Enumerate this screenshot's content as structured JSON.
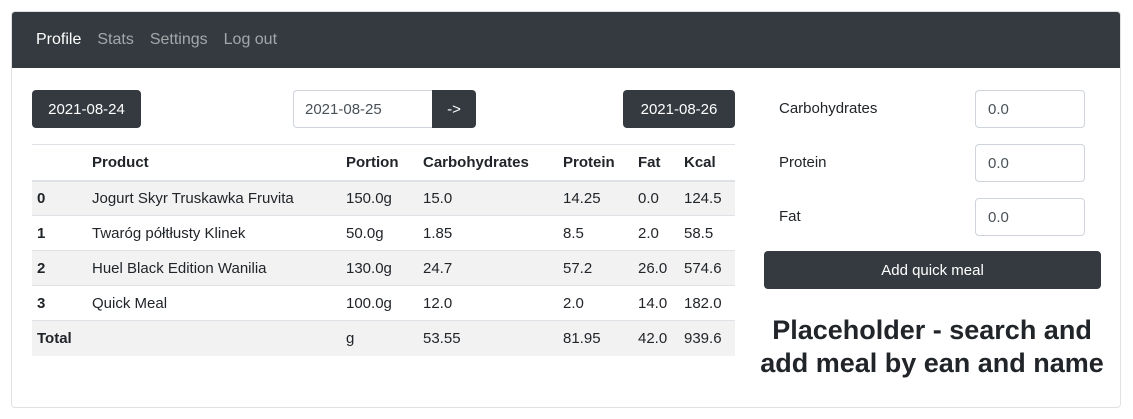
{
  "nav": {
    "items": [
      {
        "label": "Profile",
        "active": true
      },
      {
        "label": "Stats",
        "active": false
      },
      {
        "label": "Settings",
        "active": false
      },
      {
        "label": "Log out",
        "active": false
      }
    ]
  },
  "date_nav": {
    "prev_label": "2021-08-24",
    "current_value": "2021-08-25",
    "go_label": "->",
    "next_label": "2021-08-26"
  },
  "table": {
    "headers": [
      "",
      "Product",
      "Portion",
      "Carbohydrates",
      "Protein",
      "Fat",
      "Kcal"
    ],
    "rows": [
      {
        "index": "0",
        "product": "Jogurt Skyr Truskawka Fruvita",
        "portion": "150.0g",
        "carbs": "15.0",
        "protein": "14.25",
        "fat": "0.0",
        "kcal": "124.5"
      },
      {
        "index": "1",
        "product": "Twaróg półtłusty Klinek",
        "portion": "50.0g",
        "carbs": "1.85",
        "protein": "8.5",
        "fat": "2.0",
        "kcal": "58.5"
      },
      {
        "index": "2",
        "product": "Huel Black Edition Wanilia",
        "portion": "130.0g",
        "carbs": "24.7",
        "protein": "57.2",
        "fat": "26.0",
        "kcal": "574.6"
      },
      {
        "index": "3",
        "product": "Quick Meal",
        "portion": "100.0g",
        "carbs": "12.0",
        "protein": "2.0",
        "fat": "14.0",
        "kcal": "182.0"
      }
    ],
    "total": {
      "label": "Total",
      "product": "",
      "portion": "g",
      "carbs": "53.55",
      "protein": "81.95",
      "fat": "42.0",
      "kcal": "939.6"
    }
  },
  "quick_meal": {
    "carbs_label": "Carbohydrates",
    "carbs_value": "0.0",
    "protein_label": "Protein",
    "protein_value": "0.0",
    "fat_label": "Fat",
    "fat_value": "0.0",
    "submit_label": "Add quick meal"
  },
  "placeholder_text": "Placeholder - search and add meal by ean and name",
  "colors": {
    "navbar_bg": "#343a40",
    "button_bg": "#343a40",
    "stripe_bg": "#f2f2f2"
  }
}
